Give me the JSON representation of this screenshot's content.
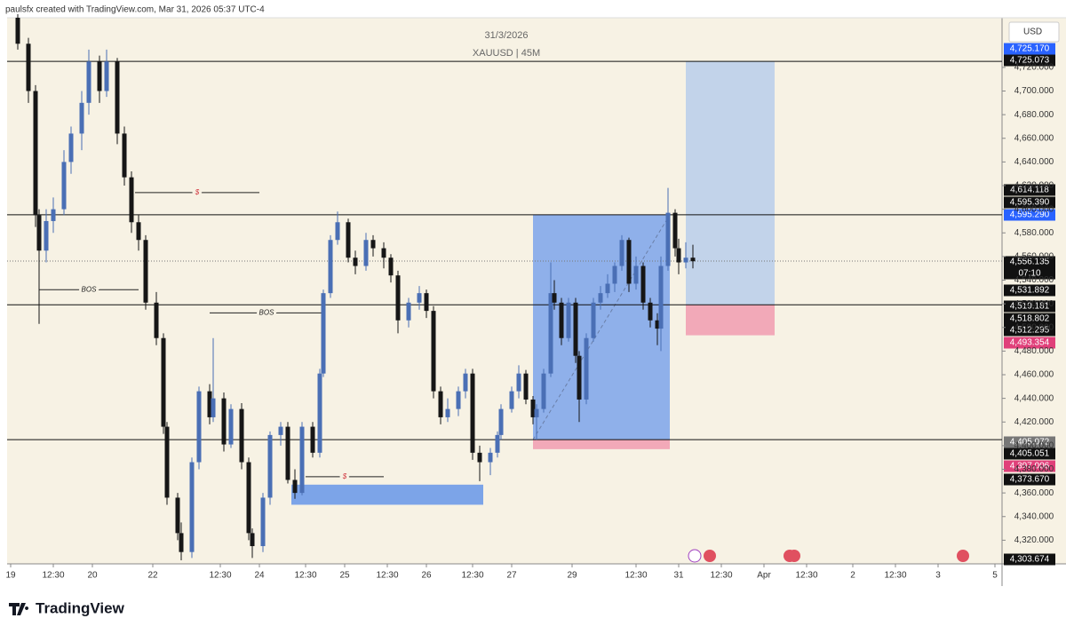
{
  "header": "paulsfx created with TradingView.com, Mar 31, 2026 05:37 UTC-4",
  "footer": "TradingView",
  "chart_data": {
    "type": "candlestick",
    "title": "31/3/2026",
    "subtitle": "XAUUSD | 45M",
    "currency": "USD",
    "up_color": "#4a6fb5",
    "down_color": "#161616",
    "xlim": [
      0,
      280
    ],
    "ylim": [
      4300,
      4777
    ],
    "xticks": [
      {
        "value": 1,
        "label": "19"
      },
      {
        "value": 13,
        "label": "12:30"
      },
      {
        "value": 24,
        "label": "20"
      },
      {
        "value": 41,
        "label": "22"
      },
      {
        "value": 60,
        "label": "12:30"
      },
      {
        "value": 71,
        "label": "24"
      },
      {
        "value": 84,
        "label": "12:30"
      },
      {
        "value": 95,
        "label": "25"
      },
      {
        "value": 107,
        "label": "12:30"
      },
      {
        "value": 118,
        "label": "26"
      },
      {
        "value": 131,
        "label": "12:30"
      },
      {
        "value": 142,
        "label": "27"
      },
      {
        "value": 159,
        "label": "29"
      },
      {
        "value": 177,
        "label": "12:30"
      },
      {
        "value": 189,
        "label": "31"
      },
      {
        "value": 201,
        "label": "12:30"
      },
      {
        "value": 213,
        "label": "Apr"
      },
      {
        "value": 225,
        "label": "12:30"
      },
      {
        "value": 238,
        "label": "2"
      },
      {
        "value": 250,
        "label": "12:30"
      },
      {
        "value": 262,
        "label": "3"
      },
      {
        "value": 278,
        "label": "5"
      }
    ],
    "yticks": [
      {
        "value": 4320,
        "label": "4,320.000"
      },
      {
        "value": 4340,
        "label": "4,340.000"
      },
      {
        "value": 4360,
        "label": "4,360.000"
      },
      {
        "value": 4380,
        "label": "4,380.000"
      },
      {
        "value": 4400,
        "label": "4,400.000"
      },
      {
        "value": 4420,
        "label": "4,420.000"
      },
      {
        "value": 4440,
        "label": "4,440.000"
      },
      {
        "value": 4460,
        "label": "4,460.000"
      },
      {
        "value": 4480,
        "label": "4,480.000"
      },
      {
        "value": 4500,
        "label": "4,500.000"
      },
      {
        "value": 4520,
        "label": "4,520.000"
      },
      {
        "value": 4540,
        "label": "4,540.000"
      },
      {
        "value": 4560,
        "label": "4,560.000"
      },
      {
        "value": 4580,
        "label": "4,580.000"
      },
      {
        "value": 4600,
        "label": "4,600.000"
      },
      {
        "value": 4620,
        "label": "4,620.000"
      },
      {
        "value": 4640,
        "label": "4,640.000"
      },
      {
        "value": 4660,
        "label": "4,660.000"
      },
      {
        "value": 4680,
        "label": "4,680.000"
      },
      {
        "value": 4700,
        "label": "4,700.000"
      },
      {
        "value": 4720,
        "label": "4,720.000"
      }
    ],
    "candles": [
      [
        3,
        4762,
        4765,
        4735,
        4740
      ],
      [
        6,
        4740,
        4745,
        4690,
        4700
      ],
      [
        8,
        4700,
        4705,
        4585,
        4595
      ],
      [
        9,
        4595,
        4600,
        4503,
        4565
      ],
      [
        11,
        4565,
        4600,
        4555,
        4590
      ],
      [
        13,
        4590,
        4610,
        4580,
        4600
      ],
      [
        16,
        4600,
        4650,
        4595,
        4640
      ],
      [
        18,
        4640,
        4670,
        4630,
        4664
      ],
      [
        21,
        4664,
        4700,
        4650,
        4690
      ],
      [
        23,
        4690,
        4735,
        4680,
        4725
      ],
      [
        26,
        4725,
        4730,
        4690,
        4700
      ],
      [
        28,
        4700,
        4735,
        4695,
        4725
      ],
      [
        31,
        4725,
        4728,
        4655,
        4664
      ],
      [
        33,
        4664,
        4670,
        4620,
        4627
      ],
      [
        35,
        4627,
        4632,
        4580,
        4589
      ],
      [
        37,
        4589,
        4595,
        4565,
        4574
      ],
      [
        39,
        4574,
        4578,
        4515,
        4521
      ],
      [
        42,
        4521,
        4530,
        4485,
        4491
      ],
      [
        44,
        4491,
        4495,
        4410,
        4416
      ],
      [
        45,
        4416,
        4420,
        4350,
        4356
      ],
      [
        48,
        4356,
        4360,
        4320,
        4326
      ],
      [
        49,
        4326,
        4335,
        4303,
        4310
      ],
      [
        52,
        4310,
        4390,
        4305,
        4386
      ],
      [
        54,
        4386,
        4450,
        4380,
        4446
      ],
      [
        57,
        4446,
        4452,
        4418,
        4424
      ],
      [
        58,
        4424,
        4491,
        4420,
        4440
      ],
      [
        61,
        4440,
        4445,
        4395,
        4401
      ],
      [
        63,
        4401,
        4435,
        4398,
        4431
      ],
      [
        66,
        4431,
        4436,
        4380,
        4386
      ],
      [
        68,
        4386,
        4390,
        4320,
        4326
      ],
      [
        69,
        4326,
        4330,
        4305,
        4315
      ],
      [
        72,
        4315,
        4360,
        4310,
        4356
      ],
      [
        74,
        4356,
        4412,
        4350,
        4409
      ],
      [
        77,
        4409,
        4420,
        4400,
        4416
      ],
      [
        79,
        4416,
        4420,
        4368,
        4371
      ],
      [
        81,
        4371,
        4380,
        4355,
        4360
      ],
      [
        83,
        4360,
        4420,
        4358,
        4416
      ],
      [
        86,
        4416,
        4420,
        4390,
        4394
      ],
      [
        88,
        4394,
        4465,
        4390,
        4461
      ],
      [
        89,
        4461,
        4532,
        4458,
        4529
      ],
      [
        91,
        4529,
        4578,
        4525,
        4574
      ],
      [
        93,
        4574,
        4598,
        4570,
        4589
      ],
      [
        96,
        4589,
        4592,
        4555,
        4559
      ],
      [
        98,
        4559,
        4565,
        4545,
        4552
      ],
      [
        101,
        4552,
        4580,
        4548,
        4574
      ],
      [
        103,
        4574,
        4578,
        4560,
        4567
      ],
      [
        106,
        4567,
        4572,
        4550,
        4559
      ],
      [
        108,
        4559,
        4562,
        4538,
        4544
      ],
      [
        110,
        4544,
        4548,
        4495,
        4506
      ],
      [
        113,
        4506,
        4525,
        4500,
        4521
      ],
      [
        116,
        4521,
        4535,
        4515,
        4529
      ],
      [
        118,
        4529,
        4532,
        4508,
        4514
      ],
      [
        120,
        4514,
        4518,
        4440,
        4446
      ],
      [
        122,
        4446,
        4450,
        4418,
        4424
      ],
      [
        124,
        4424,
        4440,
        4420,
        4431
      ],
      [
        127,
        4431,
        4450,
        4425,
        4446
      ],
      [
        129,
        4446,
        4465,
        4440,
        4461
      ],
      [
        131,
        4461,
        4465,
        4388,
        4394
      ],
      [
        133,
        4394,
        4400,
        4370,
        4386
      ],
      [
        136,
        4386,
        4398,
        4375,
        4394
      ],
      [
        138,
        4394,
        4412,
        4390,
        4409
      ],
      [
        139,
        4409,
        4435,
        4405,
        4431
      ],
      [
        142,
        4431,
        4450,
        4428,
        4446
      ],
      [
        144,
        4446,
        4468,
        4440,
        4461
      ],
      [
        146,
        4461,
        4464,
        4435,
        4439
      ],
      [
        148,
        4439,
        4442,
        4418,
        4424
      ],
      [
        149,
        4424,
        4435,
        4405,
        4431
      ],
      [
        151,
        4431,
        4465,
        4428,
        4461
      ],
      [
        153,
        4461,
        4555,
        4458,
        4529
      ],
      [
        154,
        4529,
        4540,
        4515,
        4521
      ],
      [
        156,
        4521,
        4525,
        4485,
        4491
      ],
      [
        158,
        4491,
        4525,
        4488,
        4521
      ],
      [
        160,
        4521,
        4525,
        4470,
        4476
      ],
      [
        161,
        4476,
        4480,
        4420,
        4439
      ],
      [
        163,
        4439,
        4495,
        4435,
        4491
      ],
      [
        165,
        4491,
        4525,
        4488,
        4521
      ],
      [
        167,
        4521,
        4535,
        4515,
        4529
      ],
      [
        169,
        4529,
        4545,
        4525,
        4537
      ],
      [
        171,
        4537,
        4555,
        4530,
        4552
      ],
      [
        173,
        4552,
        4578,
        4548,
        4574
      ],
      [
        175,
        4574,
        4576,
        4530,
        4537
      ],
      [
        177,
        4537,
        4560,
        4532,
        4552
      ],
      [
        179,
        4552,
        4555,
        4515,
        4521
      ],
      [
        181,
        4521,
        4525,
        4500,
        4506
      ],
      [
        183,
        4506,
        4512,
        4485,
        4499
      ],
      [
        184,
        4499,
        4560,
        4480,
        4552
      ],
      [
        186,
        4552,
        4618,
        4548,
        4597
      ],
      [
        188,
        4597,
        4600,
        4560,
        4567
      ],
      [
        189,
        4567,
        4575,
        4545,
        4555
      ],
      [
        191,
        4555,
        4572,
        4550,
        4559
      ],
      [
        193,
        4559,
        4570,
        4550,
        4556
      ]
    ],
    "levels": [
      4725.073,
      4595.29,
      4519.181,
      4405.072
    ],
    "last_price": 4556.135,
    "positions": [
      {
        "x": [
          148,
          186.5
        ],
        "entry": 4405.072,
        "target": 4595.29,
        "stop": 4397.006
      },
      {
        "x": [
          191,
          216
        ],
        "entry": 4519.181,
        "target": 4725.17,
        "stop": 4493.354
      }
    ],
    "zone": {
      "x": [
        80,
        134
      ],
      "low": 4350,
      "high": 4367
    },
    "marks": [
      {
        "label": "BOS",
        "x": [
          9,
          37
        ],
        "price": 4531.892
      },
      {
        "label": "BOS",
        "x": [
          57,
          89
        ],
        "price": 4512.295
      },
      {
        "label": "$",
        "x": [
          36,
          71
        ],
        "price": 4614.118
      },
      {
        "label": "$",
        "x": [
          84,
          106
        ],
        "price": 4373.67
      }
    ],
    "price_labels": [
      "4,725.170",
      "4,725.073",
      "4,614.118",
      "4,595.390",
      "4,595.290",
      "4,556.135",
      "07:10",
      "4,531.892",
      "4,519.181",
      "4,518.802",
      "4,512.295",
      "4,493.354",
      "4,405.072",
      "4,405.051",
      "4,397.006",
      "4,373.670",
      "4,303.674"
    ]
  }
}
